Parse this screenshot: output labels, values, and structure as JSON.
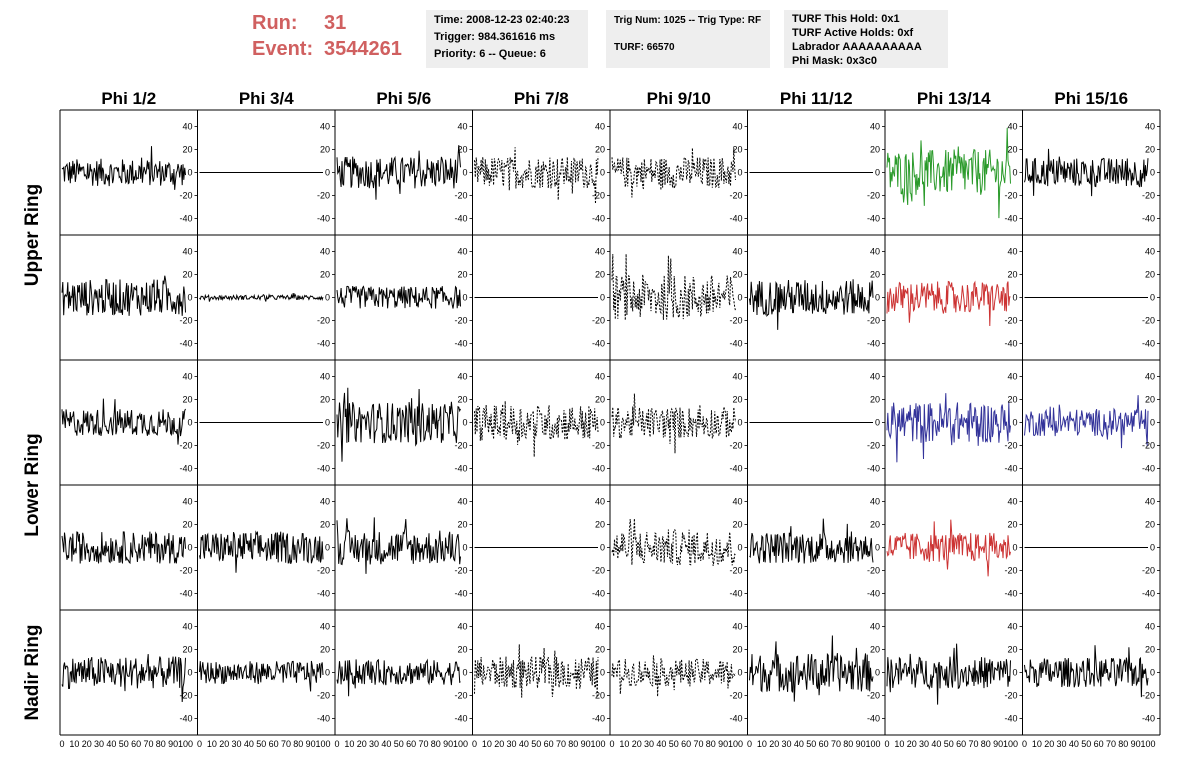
{
  "header": {
    "run_label": "Run:",
    "run_value": "31",
    "event_label": "Event:",
    "event_value": "3544261",
    "time": "Time: 2008-12-23 02:40:23",
    "trigger": "Trigger: 984.361616 ms",
    "priority": "Priority: 6 -- Queue: 6",
    "trig": "Trig Num: 1025 -- Trig Type: RF",
    "turf": "TURF: 66570",
    "turf_hold": "TURF This Hold: 0x1",
    "turf_active": "TURF Active Holds: 0xf",
    "labrador": "Labrador AAAAAAAAAA",
    "phi_mask": "Phi Mask: 0x3c0"
  },
  "colors": {
    "header_red": "#d06060",
    "info_bg": "#eeeeee",
    "black": "#000000",
    "green": "#2a9a2a",
    "red": "#cc3333",
    "blue": "#33339a"
  },
  "chart_data": {
    "type": "line",
    "columns": [
      "Phi 1/2",
      "Phi 3/4",
      "Phi 5/6",
      "Phi 7/8",
      "Phi 9/10",
      "Phi 11/12",
      "Phi 13/14",
      "Phi 15/16"
    ],
    "rows": [
      "Upper Ring",
      "Upper Ring",
      "Lower Ring",
      "Lower Ring",
      "Nadir Ring"
    ],
    "ring_labels": [
      {
        "label": "Upper Ring",
        "rows": [
          0,
          1
        ]
      },
      {
        "label": "Lower Ring",
        "rows": [
          2,
          3
        ]
      },
      {
        "label": "Nadir Ring",
        "rows": [
          4
        ]
      }
    ],
    "xlim": [
      0,
      100
    ],
    "ylim": [
      -50,
      50
    ],
    "x_ticks": [
      "0",
      "10",
      "20",
      "30",
      "40",
      "50",
      "60",
      "70",
      "80",
      "90",
      "100"
    ],
    "y_ticks": [
      "40",
      "20",
      "0",
      "-20",
      "-40"
    ],
    "panels": [
      [
        {
          "style": "solid",
          "color": "black",
          "amp": 12
        },
        {
          "style": "flat",
          "color": "black",
          "amp": 0
        },
        {
          "style": "solid",
          "color": "black",
          "amp": 14
        },
        {
          "style": "dashed",
          "color": "black",
          "amp": 14
        },
        {
          "style": "dashed",
          "color": "black",
          "amp": 14
        },
        {
          "style": "flat",
          "color": "black",
          "amp": 0
        },
        {
          "style": "solid",
          "color": "green",
          "amp": 20
        },
        {
          "style": "solid",
          "color": "black",
          "amp": 13
        }
      ],
      [
        {
          "style": "solid",
          "color": "black",
          "amp": 16
        },
        {
          "style": "solid",
          "color": "black",
          "amp": 2
        },
        {
          "style": "solid",
          "color": "black",
          "amp": 10
        },
        {
          "style": "flat",
          "color": "black",
          "amp": 0
        },
        {
          "style": "dashed",
          "color": "black",
          "amp": 20
        },
        {
          "style": "solid",
          "color": "black",
          "amp": 16
        },
        {
          "style": "solid",
          "color": "red",
          "amp": 14
        },
        {
          "style": "flat",
          "color": "black",
          "amp": 0
        }
      ],
      [
        {
          "style": "solid",
          "color": "black",
          "amp": 12
        },
        {
          "style": "flat",
          "color": "black",
          "amp": 0
        },
        {
          "style": "solid",
          "color": "black",
          "amp": 18
        },
        {
          "style": "dashed",
          "color": "black",
          "amp": 16
        },
        {
          "style": "dashed",
          "color": "black",
          "amp": 14
        },
        {
          "style": "flat",
          "color": "black",
          "amp": 0
        },
        {
          "style": "solid",
          "color": "blue",
          "amp": 18
        },
        {
          "style": "solid",
          "color": "blue",
          "amp": 12
        }
      ],
      [
        {
          "style": "solid",
          "color": "black",
          "amp": 14
        },
        {
          "style": "solid",
          "color": "black",
          "amp": 14
        },
        {
          "style": "solid",
          "color": "black",
          "amp": 15
        },
        {
          "style": "flat",
          "color": "black",
          "amp": 0
        },
        {
          "style": "dashed",
          "color": "black",
          "amp": 16
        },
        {
          "style": "solid",
          "color": "black",
          "amp": 14
        },
        {
          "style": "solid",
          "color": "red",
          "amp": 13
        },
        {
          "style": "flat",
          "color": "black",
          "amp": 0
        }
      ],
      [
        {
          "style": "solid",
          "color": "black",
          "amp": 14
        },
        {
          "style": "solid",
          "color": "black",
          "amp": 10
        },
        {
          "style": "solid",
          "color": "black",
          "amp": 11
        },
        {
          "style": "dashed",
          "color": "black",
          "amp": 14
        },
        {
          "style": "dashed",
          "color": "black",
          "amp": 12
        },
        {
          "style": "solid",
          "color": "black",
          "amp": 17
        },
        {
          "style": "solid",
          "color": "black",
          "amp": 14
        },
        {
          "style": "solid",
          "color": "black",
          "amp": 13
        }
      ]
    ]
  }
}
